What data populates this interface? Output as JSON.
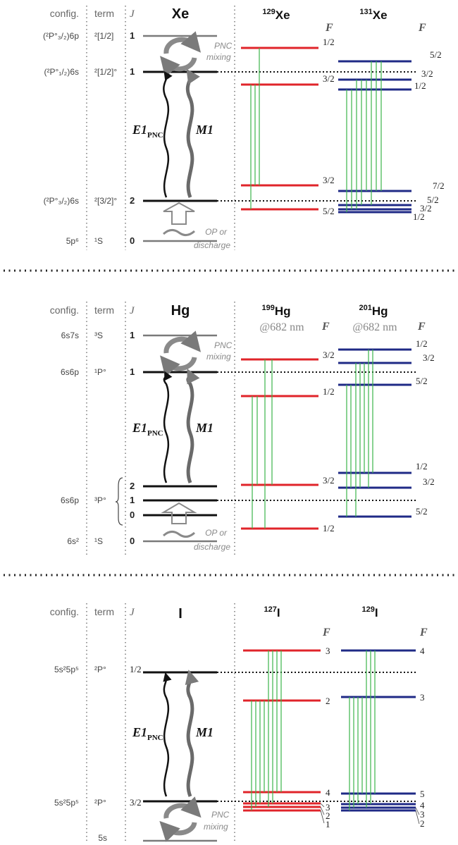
{
  "columns": {
    "config": "config.",
    "term": "term",
    "j": "J",
    "f": "F"
  },
  "annotations": {
    "pnc1": "PNC",
    "pnc2": "mixing",
    "op1": "OP or",
    "op2": "discharge",
    "e1": "E",
    "e1num": "1",
    "e1sub": "PNC",
    "m1": "M",
    "m1num": "1"
  },
  "panels": [
    {
      "id": "xe",
      "atom": "Xe",
      "iso1": {
        "mass": "129",
        "elem": "Xe",
        "freq": ""
      },
      "iso2": {
        "mass": "131",
        "elem": "Xe",
        "freq": ""
      },
      "rows": [
        {
          "config": "(²P°₃/₂)6p",
          "term": "²[1/2]",
          "j": "1"
        },
        {
          "config": "(²P°₁/₂)6s",
          "term": "²[1/2]°",
          "j": "1"
        },
        {
          "config": "(²P°₃/₂)6s",
          "term": "²[3/2]°",
          "j": "2"
        },
        {
          "config": "5p⁶",
          "term": "¹S",
          "j": "0"
        }
      ],
      "iso1_f": [
        "1/2",
        "3/2",
        "3/2",
        "5/2"
      ],
      "iso2_f": [
        "5/2",
        "3/2",
        "1/2",
        "7/2",
        "5/2",
        "3/2",
        "1/2"
      ]
    },
    {
      "id": "hg",
      "atom": "Hg",
      "iso1": {
        "mass": "199",
        "elem": "Hg",
        "freq": "@682 nm"
      },
      "iso2": {
        "mass": "201",
        "elem": "Hg",
        "freq": "@682 nm"
      },
      "rows": [
        {
          "config": "6s7s",
          "term": "³S",
          "j": "1"
        },
        {
          "config": "6s6p",
          "term": "¹P°",
          "j": "1"
        },
        {
          "config": "6s6p",
          "term": "³P°",
          "j": "2"
        },
        {
          "config": "",
          "term": "",
          "j": "1"
        },
        {
          "config": "",
          "term": "",
          "j": "0"
        },
        {
          "config": "6s²",
          "term": "¹S",
          "j": "0"
        }
      ],
      "iso1_f": [
        "3/2",
        "1/2",
        "3/2",
        "1/2"
      ],
      "iso2_f": [
        "1/2",
        "3/2",
        "5/2",
        "1/2",
        "3/2",
        "5/2"
      ]
    },
    {
      "id": "i",
      "atom": "I",
      "iso1": {
        "mass": "127",
        "elem": "I",
        "freq": ""
      },
      "iso2": {
        "mass": "129",
        "elem": "I",
        "freq": ""
      },
      "rows": [
        {
          "config": "5s²5p⁵",
          "term": "²P°",
          "j": "1/2"
        },
        {
          "config": "5s²5p⁵",
          "term": "²P°",
          "j": "3/2"
        },
        {
          "config": "5s",
          "term": "",
          "j": ""
        }
      ],
      "iso1_f": [
        "3",
        "2",
        "4",
        "3",
        "2",
        "1"
      ],
      "iso2_f": [
        "4",
        "3",
        "5",
        "4",
        "3",
        "2"
      ]
    }
  ],
  "colors": {
    "red": "#e0242a",
    "blue": "#1f2a86",
    "green": "#3bb54a",
    "black": "#111111",
    "grey": "#7a7a7a",
    "dots": "#9a9a9a"
  }
}
